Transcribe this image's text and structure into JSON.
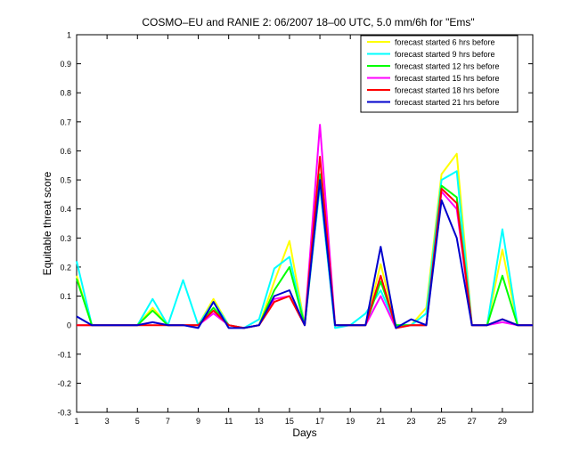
{
  "chart_data": {
    "type": "line",
    "title": "COSMO–EU and RANIE 2: 06/2007 18–00 UTC, 5.0 mm/6h for \"Ems\"",
    "xlabel": "Days",
    "ylabel": "Equitable threat score",
    "xlim": [
      1,
      31
    ],
    "ylim": [
      -0.3,
      1
    ],
    "xticks": [
      1,
      3,
      5,
      7,
      9,
      11,
      13,
      15,
      17,
      19,
      21,
      23,
      25,
      27,
      29
    ],
    "yticks": [
      -0.3,
      -0.2,
      -0.1,
      0,
      0.1,
      0.2,
      0.3,
      0.4,
      0.5,
      0.6,
      0.7,
      0.8,
      0.9,
      1
    ],
    "grid": false,
    "legend_position": "top-right",
    "x": [
      1,
      2,
      3,
      4,
      5,
      6,
      7,
      8,
      9,
      10,
      11,
      12,
      13,
      14,
      15,
      16,
      17,
      18,
      19,
      20,
      21,
      22,
      23,
      24,
      25,
      26,
      27,
      28,
      29,
      30,
      31
    ],
    "series": [
      {
        "name": "forecast started  6 hrs before",
        "color": "#ffff00",
        "values": [
          0.17,
          0,
          0,
          0,
          0,
          0.06,
          0,
          0,
          0,
          0.09,
          0,
          -0.01,
          0,
          0.15,
          0.29,
          0,
          0.48,
          0,
          0,
          0,
          0.21,
          0,
          0,
          0.06,
          0.52,
          0.59,
          0,
          0,
          0.26,
          0,
          0
        ]
      },
      {
        "name": "forecast started  9 hrs before",
        "color": "#00ffff",
        "values": [
          0.22,
          0,
          0,
          0,
          0,
          0.09,
          0,
          0.155,
          0,
          0.08,
          0,
          -0.01,
          0.02,
          0.195,
          0.235,
          0,
          0.48,
          -0.01,
          0,
          0.04,
          0.12,
          0,
          0,
          0.04,
          0.5,
          0.53,
          0,
          0,
          0.33,
          0,
          0
        ]
      },
      {
        "name": "forecast started 12 hrs before",
        "color": "#00ff00",
        "values": [
          0.16,
          0,
          0,
          0,
          0,
          0.05,
          0,
          0,
          0,
          0.06,
          0,
          -0.01,
          0,
          0.12,
          0.2,
          0,
          0.52,
          0,
          0,
          0,
          0.15,
          0,
          0,
          0,
          0.48,
          0.44,
          0,
          0,
          0.17,
          0,
          0
        ]
      },
      {
        "name": "forecast started 15 hrs before",
        "color": "#ff00ff",
        "values": [
          0,
          0,
          0,
          0,
          0,
          0.01,
          0,
          0,
          0,
          0.04,
          0,
          -0.01,
          0,
          0.09,
          0.1,
          0,
          0.69,
          0,
          0,
          0,
          0.1,
          -0.01,
          0,
          0,
          0.46,
          0.4,
          0,
          0,
          0.01,
          0,
          0
        ]
      },
      {
        "name": "forecast started 18 hrs before",
        "color": "#ff0000",
        "values": [
          0,
          0,
          0,
          0,
          0,
          0,
          0,
          0,
          0,
          0.05,
          0,
          -0.01,
          0,
          0.08,
          0.1,
          0,
          0.58,
          0,
          0,
          0,
          0.17,
          -0.01,
          0,
          0,
          0.47,
          0.42,
          0,
          0,
          0.02,
          0,
          0
        ]
      },
      {
        "name": "forecast started 21 hrs before",
        "color": "#0000cc",
        "values": [
          0.03,
          0,
          0,
          0,
          0,
          0.01,
          0,
          0,
          -0.01,
          0.08,
          -0.01,
          -0.01,
          0,
          0.1,
          0.12,
          0,
          0.5,
          0,
          0,
          0,
          0.27,
          -0.01,
          0.02,
          0,
          0.43,
          0.3,
          0,
          0,
          0.02,
          0,
          0
        ]
      }
    ]
  }
}
